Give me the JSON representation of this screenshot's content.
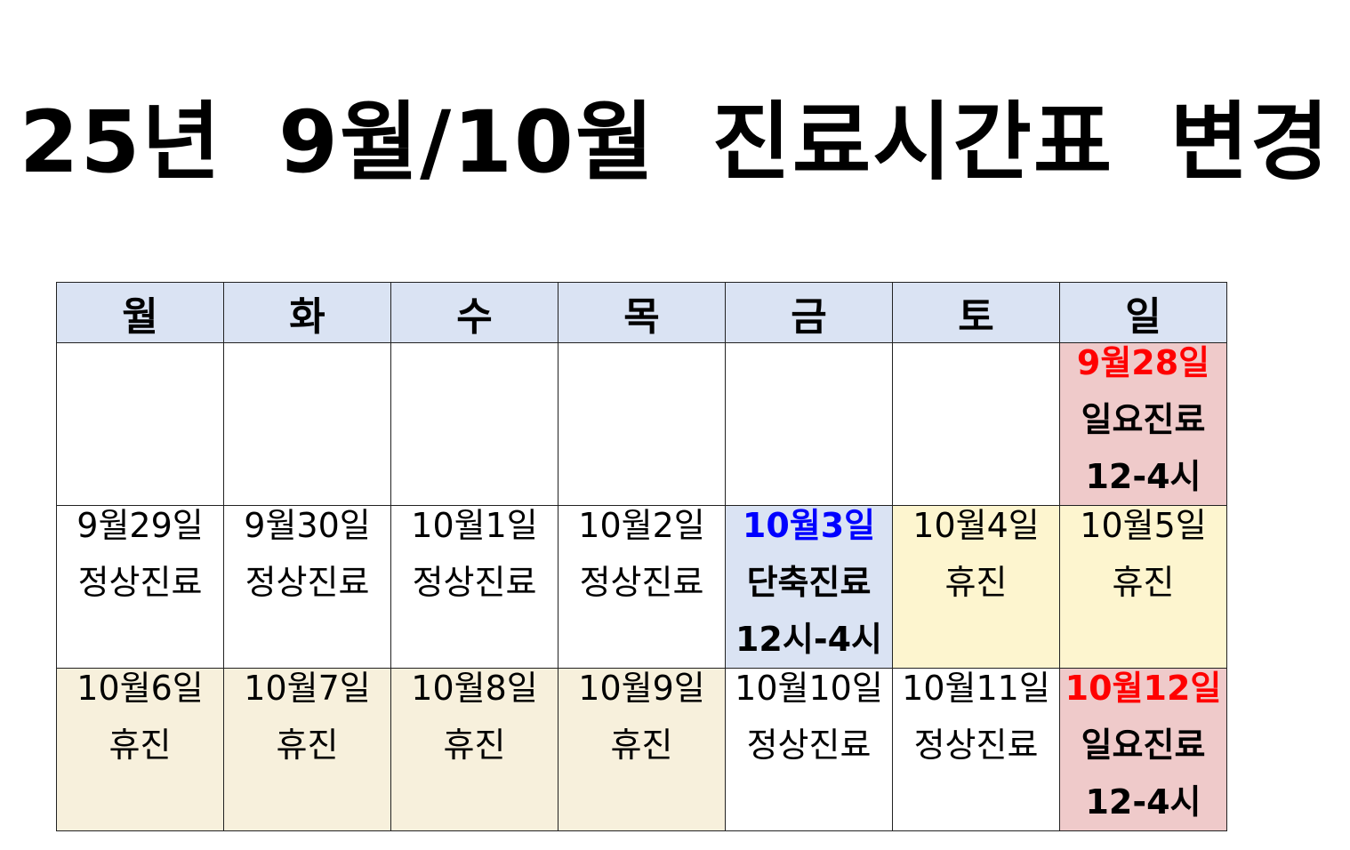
{
  "title": "25년 9월/10월 진료시간표 변경",
  "colors": {
    "header_bg": "#dae3f3",
    "sunday_clinic_bg": "#efcaca",
    "holiday_bg": "#fdf5cf",
    "closed_bg": "#f7f0dc",
    "short_bg": "#dae3f3",
    "red": "#ff0000",
    "blue": "#0000ff"
  },
  "headers": [
    "월",
    "화",
    "수",
    "목",
    "금",
    "토",
    "일"
  ],
  "rows": [
    [
      {
        "lines": [],
        "bg": "#ffffff"
      },
      {
        "lines": [],
        "bg": "#ffffff"
      },
      {
        "lines": [],
        "bg": "#ffffff"
      },
      {
        "lines": [],
        "bg": "#ffffff"
      },
      {
        "lines": [],
        "bg": "#ffffff"
      },
      {
        "lines": [],
        "bg": "#ffffff"
      },
      {
        "lines": [
          {
            "text": "9월28일",
            "color": "#ff0000",
            "bold": true
          },
          {
            "text": "일요진료",
            "bold": true
          },
          {
            "text": "12-4시",
            "bold": true
          }
        ],
        "bg": "#efcaca"
      }
    ],
    [
      {
        "lines": [
          {
            "text": "9월29일"
          },
          {
            "text": "정상진료"
          }
        ],
        "bg": "#ffffff"
      },
      {
        "lines": [
          {
            "text": "9월30일"
          },
          {
            "text": "정상진료"
          }
        ],
        "bg": "#ffffff"
      },
      {
        "lines": [
          {
            "text": "10월1일"
          },
          {
            "text": "정상진료"
          }
        ],
        "bg": "#ffffff"
      },
      {
        "lines": [
          {
            "text": "10월2일"
          },
          {
            "text": "정상진료"
          }
        ],
        "bg": "#ffffff"
      },
      {
        "lines": [
          {
            "text": "10월3일",
            "color": "#0000ff",
            "bold": true
          },
          {
            "text": "단축진료",
            "bold": true
          },
          {
            "text": "12시-4시",
            "bold": true
          }
        ],
        "bg": "#dae3f3"
      },
      {
        "lines": [
          {
            "text": "10월4일"
          },
          {
            "text": "휴진"
          }
        ],
        "bg": "#fdf5cf"
      },
      {
        "lines": [
          {
            "text": "10월5일"
          },
          {
            "text": "휴진"
          }
        ],
        "bg": "#fdf5cf"
      }
    ],
    [
      {
        "lines": [
          {
            "text": "10월6일"
          },
          {
            "text": "휴진"
          }
        ],
        "bg": "#f7f0dc"
      },
      {
        "lines": [
          {
            "text": "10월7일"
          },
          {
            "text": "휴진"
          }
        ],
        "bg": "#f7f0dc"
      },
      {
        "lines": [
          {
            "text": "10월8일"
          },
          {
            "text": "휴진"
          }
        ],
        "bg": "#f7f0dc"
      },
      {
        "lines": [
          {
            "text": "10월9일"
          },
          {
            "text": "휴진"
          }
        ],
        "bg": "#f7f0dc"
      },
      {
        "lines": [
          {
            "text": "10월10일"
          },
          {
            "text": "정상진료"
          }
        ],
        "bg": "#ffffff"
      },
      {
        "lines": [
          {
            "text": "10월11일"
          },
          {
            "text": "정상진료"
          }
        ],
        "bg": "#ffffff"
      },
      {
        "lines": [
          {
            "text": "10월12일",
            "color": "#ff0000",
            "bold": true
          },
          {
            "text": "일요진료",
            "bold": true
          },
          {
            "text": "12-4시",
            "bold": true
          }
        ],
        "bg": "#efcaca"
      }
    ]
  ]
}
